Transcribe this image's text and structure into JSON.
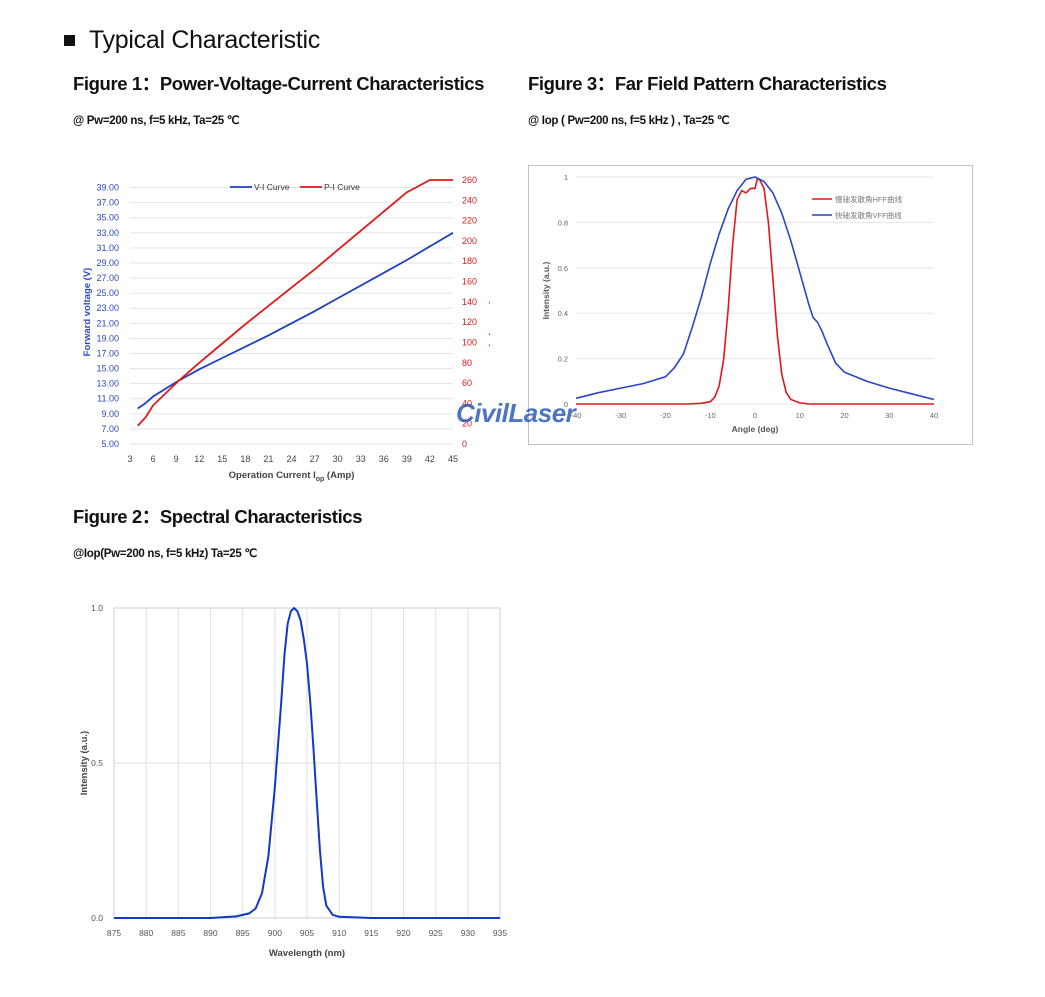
{
  "page": {
    "heading": "Typical Characteristic",
    "watermark": "CivilLaser",
    "fig1": {
      "title": "Figure 1：Power-Voltage-Current Characteristics",
      "conditions": "@ Pw=200 ns, f=5 kHz, Ta=25 ℃"
    },
    "fig2": {
      "title": "Figure 2：Spectral Characteristics",
      "conditions": "@Iop(Pw=200 ns, f=5 kHz) Ta=25 ℃"
    },
    "fig3": {
      "title": "Figure 3：Far Field Pattern Characteristics",
      "conditions": "@ Iop ( Pw=200 ns, f=5 kHz ) , Ta=25 ℃"
    }
  },
  "chart_data": [
    {
      "id": "fig1",
      "type": "line",
      "xlabel": "Operation Current I",
      "xlabel_sub": "op",
      "xlabel_suffix": " (Amp)",
      "ylabel_left": "Forward voltage (V)",
      "ylabel_right": "Peak power (W)",
      "xlim": [
        3,
        45
      ],
      "ylim_left": [
        5,
        40
      ],
      "ylim_right": [
        0,
        260
      ],
      "x_ticks": [
        3,
        6,
        9,
        12,
        15,
        18,
        21,
        24,
        27,
        30,
        33,
        36,
        39,
        42,
        45
      ],
      "y_left_ticks": [
        "5.00",
        "7.00",
        "9.00",
        "11.00",
        "13.00",
        "15.00",
        "17.00",
        "19.00",
        "21.00",
        "23.00",
        "25.00",
        "27.00",
        "29.00",
        "31.00",
        "33.00",
        "35.00",
        "37.00",
        "39.00"
      ],
      "y_right_ticks": [
        0,
        20,
        40,
        60,
        80,
        100,
        120,
        140,
        160,
        180,
        200,
        220,
        240,
        260
      ],
      "legend_position": "top-center",
      "grid": "horizontal",
      "series": [
        {
          "name": "V-I Curve",
          "axis": "left",
          "color": "#1f3fbf",
          "x": [
            4,
            5,
            6,
            9,
            12,
            15,
            18,
            21,
            24,
            27,
            30,
            33,
            36,
            39,
            42,
            45
          ],
          "y": [
            9.7,
            10.4,
            11.3,
            13.2,
            14.9,
            16.4,
            17.9,
            19.4,
            21.0,
            22.6,
            24.3,
            26.0,
            27.7,
            29.4,
            31.2,
            33.0
          ]
        },
        {
          "name": "P-I Curve",
          "axis": "right",
          "color": "#e01818",
          "x": [
            4,
            5,
            6,
            9,
            12,
            15,
            18,
            21,
            24,
            27,
            30,
            33,
            36,
            39,
            42,
            45
          ],
          "y": [
            18,
            26,
            38,
            60,
            80,
            99,
            118,
            136,
            154,
            172,
            191,
            210,
            229,
            248,
            268,
            288
          ]
        }
      ]
    },
    {
      "id": "fig2",
      "type": "line",
      "xlabel": "Wavelength (nm)",
      "ylabel": "Intensity (a.u.)",
      "xlim": [
        875,
        935
      ],
      "ylim": [
        0,
        1.0
      ],
      "x_ticks": [
        875,
        880,
        885,
        890,
        895,
        900,
        905,
        910,
        915,
        920,
        925,
        930,
        935
      ],
      "y_ticks": [
        "0.0",
        "0.5",
        "1.0"
      ],
      "grid": "both",
      "series": [
        {
          "color": "#1238c4",
          "x": [
            875,
            890,
            894,
            896,
            897,
            898,
            899,
            900,
            901,
            901.5,
            902,
            902.5,
            903,
            903.5,
            904,
            904.5,
            905,
            905.5,
            906,
            906.5,
            907,
            907.5,
            908,
            909,
            910,
            915,
            935
          ],
          "y": [
            0.0,
            0.0,
            0.005,
            0.015,
            0.03,
            0.08,
            0.2,
            0.42,
            0.7,
            0.85,
            0.95,
            0.99,
            1.0,
            0.99,
            0.96,
            0.9,
            0.82,
            0.7,
            0.55,
            0.38,
            0.22,
            0.1,
            0.04,
            0.01,
            0.004,
            0.0,
            0.0
          ]
        }
      ]
    },
    {
      "id": "fig3",
      "type": "line",
      "xlabel": "Angle (deg)",
      "ylabel": "Intensity (a.u.)",
      "xlim": [
        -40,
        40
      ],
      "ylim": [
        0,
        1
      ],
      "x_ticks": [
        -40,
        -30,
        -20,
        -10,
        0,
        10,
        20,
        30,
        40
      ],
      "y_ticks": [
        "0",
        "0.2",
        "0.4",
        "0.6",
        "0.8",
        "1"
      ],
      "grid": "horizontal",
      "legend_position": "top-right",
      "series": [
        {
          "name": "慢轴发散角HFF曲线",
          "color": "#e01818",
          "x": [
            -40,
            -15,
            -12,
            -10,
            -9,
            -8,
            -7,
            -6,
            -5,
            -4,
            -3,
            -2,
            -1,
            0,
            0.5,
            1,
            2,
            3,
            4,
            5,
            6,
            7,
            8,
            10,
            12,
            15,
            40
          ],
          "y": [
            0.0,
            0.0,
            0.003,
            0.01,
            0.03,
            0.08,
            0.2,
            0.42,
            0.7,
            0.9,
            0.94,
            0.93,
            0.95,
            0.95,
            0.99,
            0.99,
            0.95,
            0.8,
            0.55,
            0.3,
            0.13,
            0.05,
            0.02,
            0.005,
            0.0,
            0.0,
            0.0
          ]
        },
        {
          "name": "快轴发散角VFF曲线",
          "color": "#2a45c8",
          "x": [
            -40,
            -35,
            -30,
            -25,
            -20,
            -18,
            -16,
            -14,
            -12,
            -10,
            -8,
            -6,
            -4,
            -2,
            0,
            2,
            4,
            6,
            8,
            10,
            12,
            13,
            14,
            15,
            16,
            18,
            20,
            25,
            30,
            35,
            40
          ],
          "y": [
            0.025,
            0.05,
            0.07,
            0.09,
            0.12,
            0.16,
            0.22,
            0.34,
            0.47,
            0.62,
            0.75,
            0.86,
            0.94,
            0.99,
            1.0,
            0.98,
            0.93,
            0.84,
            0.72,
            0.58,
            0.44,
            0.38,
            0.36,
            0.32,
            0.27,
            0.18,
            0.14,
            0.1,
            0.07,
            0.045,
            0.02
          ]
        }
      ]
    }
  ]
}
